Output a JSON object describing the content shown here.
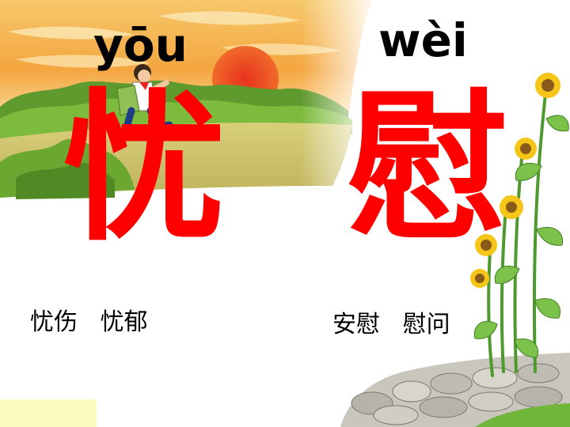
{
  "slide": {
    "left": {
      "pinyin": "yōu",
      "character": "忧",
      "words": "忧伤   忧郁"
    },
    "right": {
      "pinyin": "wèi",
      "character": "慰",
      "words": "安慰   慰问"
    }
  },
  "colors": {
    "character": "#ff0000",
    "pinyin": "#000000",
    "words": "#000000",
    "sky_orange": "#f5a623",
    "grass_green": "#7dbb3c"
  },
  "illustration": {
    "top_left": "sunset-field-with-running-boy",
    "bottom_right": "sunflowers-and-stone-wall"
  }
}
